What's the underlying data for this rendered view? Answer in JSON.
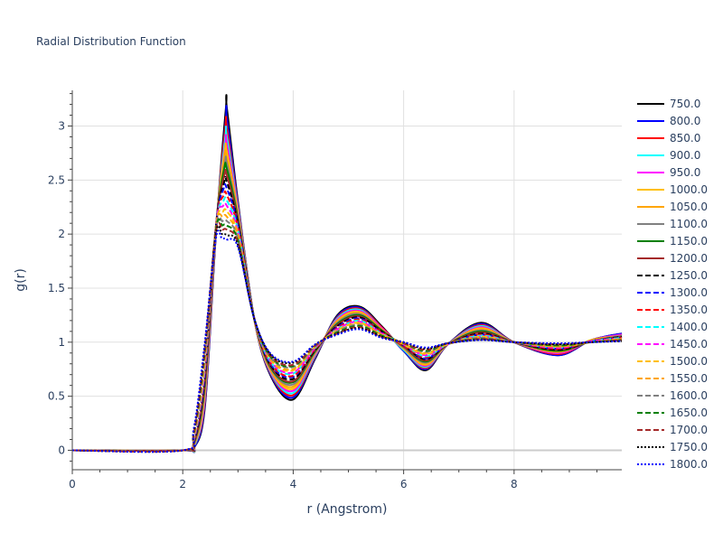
{
  "chart_data": {
    "type": "line",
    "title": "Radial Distribution Function",
    "xlabel": "r (Angstrom)",
    "ylabel": "g(r)",
    "xlim": [
      0,
      9.95
    ],
    "ylim": [
      -0.18,
      3.33
    ],
    "x_ticks": [
      0,
      2,
      4,
      6,
      8
    ],
    "x_tick_labels": [
      "0",
      "2",
      "4",
      "6",
      "8"
    ],
    "y_ticks": [
      0,
      0.5,
      1,
      1.5,
      2,
      2.5,
      3
    ],
    "y_tick_labels": [
      "0",
      "0.5",
      "1",
      "1.5",
      "2",
      "2.5",
      "3"
    ],
    "grid": true,
    "legend_position": "right",
    "r_samples": [
      0.0,
      2.0,
      2.2,
      2.4,
      2.6,
      2.8,
      3.0,
      3.3,
      3.6,
      4.0,
      4.4,
      4.8,
      5.2,
      5.6,
      6.0,
      6.4,
      6.8,
      7.4,
      8.0,
      8.8,
      9.4,
      9.95
    ],
    "series": [
      {
        "name": "750.0",
        "color": "#000000",
        "dash": "solid",
        "peak_r": 2.78,
        "peak_g": 3.16,
        "values": [
          0,
          0,
          0.02,
          0.4,
          2.0,
          3.16,
          2.3,
          1.2,
          0.68,
          0.47,
          0.85,
          1.25,
          1.33,
          1.15,
          0.92,
          0.74,
          0.98,
          1.18,
          1.0,
          0.88,
          1.02,
          1.08
        ]
      },
      {
        "name": "800.0",
        "color": "#0000ff",
        "dash": "solid",
        "peak_r": 2.78,
        "peak_g": 3.07,
        "values": [
          0,
          0,
          0.02,
          0.42,
          2.0,
          3.07,
          2.28,
          1.2,
          0.69,
          0.49,
          0.86,
          1.24,
          1.32,
          1.14,
          0.92,
          0.75,
          0.98,
          1.17,
          1.0,
          0.88,
          1.02,
          1.08
        ]
      },
      {
        "name": "850.0",
        "color": "#ff0000",
        "dash": "solid",
        "peak_r": 2.77,
        "peak_g": 2.98,
        "values": [
          0,
          0,
          0.03,
          0.45,
          2.02,
          2.98,
          2.26,
          1.2,
          0.7,
          0.51,
          0.87,
          1.23,
          1.31,
          1.14,
          0.93,
          0.76,
          0.98,
          1.16,
          1.0,
          0.89,
          1.02,
          1.07
        ]
      },
      {
        "name": "900.0",
        "color": "#00ffff",
        "dash": "solid",
        "peak_r": 2.77,
        "peak_g": 2.9,
        "values": [
          0,
          0,
          0.03,
          0.48,
          2.03,
          2.9,
          2.24,
          1.2,
          0.71,
          0.53,
          0.88,
          1.22,
          1.3,
          1.13,
          0.93,
          0.77,
          0.98,
          1.15,
          1.0,
          0.9,
          1.02,
          1.07
        ]
      },
      {
        "name": "950.0",
        "color": "#ff00ff",
        "dash": "solid",
        "peak_r": 2.77,
        "peak_g": 2.83,
        "values": [
          0,
          0,
          0.04,
          0.5,
          2.04,
          2.83,
          2.22,
          1.2,
          0.72,
          0.55,
          0.89,
          1.21,
          1.29,
          1.13,
          0.94,
          0.78,
          0.98,
          1.14,
          1.0,
          0.9,
          1.02,
          1.07
        ]
      },
      {
        "name": "1000.0",
        "color": "#ffbf00",
        "dash": "solid",
        "peak_r": 2.76,
        "peak_g": 2.76,
        "values": [
          0,
          0,
          0.04,
          0.53,
          2.05,
          2.76,
          2.2,
          1.2,
          0.73,
          0.57,
          0.9,
          1.2,
          1.28,
          1.12,
          0.94,
          0.79,
          0.98,
          1.13,
          1.0,
          0.91,
          1.02,
          1.06
        ]
      },
      {
        "name": "1050.0",
        "color": "#ffa500",
        "dash": "solid",
        "peak_r": 2.76,
        "peak_g": 2.7,
        "values": [
          0,
          0,
          0.05,
          0.56,
          2.06,
          2.7,
          2.18,
          1.2,
          0.74,
          0.59,
          0.91,
          1.19,
          1.27,
          1.12,
          0.95,
          0.8,
          0.98,
          1.12,
          1.0,
          0.91,
          1.02,
          1.06
        ]
      },
      {
        "name": "1100.0",
        "color": "#808080",
        "dash": "solid",
        "peak_r": 2.76,
        "peak_g": 2.65,
        "values": [
          0,
          0,
          0.05,
          0.58,
          2.06,
          2.65,
          2.16,
          1.21,
          0.75,
          0.61,
          0.91,
          1.18,
          1.26,
          1.11,
          0.95,
          0.81,
          0.98,
          1.11,
          1.0,
          0.92,
          1.01,
          1.06
        ]
      },
      {
        "name": "1150.0",
        "color": "#008000",
        "dash": "solid",
        "peak_r": 2.75,
        "peak_g": 2.6,
        "values": [
          0,
          0,
          0.06,
          0.61,
          2.07,
          2.6,
          2.14,
          1.21,
          0.76,
          0.63,
          0.92,
          1.17,
          1.25,
          1.11,
          0.96,
          0.82,
          0.98,
          1.1,
          1.0,
          0.92,
          1.01,
          1.05
        ]
      },
      {
        "name": "1200.0",
        "color": "#a52a2a",
        "dash": "solid",
        "peak_r": 2.75,
        "peak_g": 2.54,
        "values": [
          0,
          0,
          0.06,
          0.64,
          2.07,
          2.54,
          2.12,
          1.21,
          0.77,
          0.64,
          0.93,
          1.16,
          1.24,
          1.1,
          0.96,
          0.83,
          0.98,
          1.09,
          1.0,
          0.93,
          1.01,
          1.05
        ]
      },
      {
        "name": "1250.0",
        "color": "#000000",
        "dash": "dash",
        "peak_r": 2.75,
        "peak_g": 2.48,
        "values": [
          0,
          0,
          0.07,
          0.67,
          2.08,
          2.48,
          2.1,
          1.21,
          0.78,
          0.66,
          0.93,
          1.15,
          1.23,
          1.1,
          0.97,
          0.84,
          0.98,
          1.08,
          1.0,
          0.93,
          1.01,
          1.05
        ]
      },
      {
        "name": "1300.0",
        "color": "#0000ff",
        "dash": "dash",
        "peak_r": 2.74,
        "peak_g": 2.42,
        "values": [
          0,
          0,
          0.08,
          0.7,
          2.08,
          2.42,
          2.08,
          1.21,
          0.79,
          0.68,
          0.94,
          1.14,
          1.22,
          1.09,
          0.97,
          0.85,
          0.98,
          1.07,
          1.0,
          0.94,
          1.01,
          1.04
        ]
      },
      {
        "name": "1350.0",
        "color": "#ff0000",
        "dash": "dash",
        "peak_r": 2.74,
        "peak_g": 2.36,
        "values": [
          0,
          0,
          0.09,
          0.73,
          2.08,
          2.36,
          2.06,
          1.21,
          0.8,
          0.69,
          0.94,
          1.13,
          1.21,
          1.09,
          0.97,
          0.86,
          0.98,
          1.07,
          1.0,
          0.94,
          1.01,
          1.04
        ]
      },
      {
        "name": "1400.0",
        "color": "#00ffff",
        "dash": "dash",
        "peak_r": 2.74,
        "peak_g": 2.31,
        "values": [
          0,
          0,
          0.1,
          0.76,
          2.08,
          2.31,
          2.04,
          1.21,
          0.81,
          0.71,
          0.95,
          1.12,
          1.2,
          1.08,
          0.98,
          0.87,
          0.98,
          1.06,
          1.0,
          0.95,
          1.01,
          1.04
        ]
      },
      {
        "name": "1450.0",
        "color": "#ff00ff",
        "dash": "dash",
        "peak_r": 2.73,
        "peak_g": 2.26,
        "values": [
          0,
          0,
          0.11,
          0.79,
          2.08,
          2.26,
          2.02,
          1.21,
          0.82,
          0.72,
          0.95,
          1.12,
          1.19,
          1.08,
          0.98,
          0.88,
          0.98,
          1.05,
          1.0,
          0.95,
          1.01,
          1.03
        ]
      },
      {
        "name": "1500.0",
        "color": "#ffbf00",
        "dash": "dash",
        "peak_r": 2.73,
        "peak_g": 2.21,
        "values": [
          0,
          0,
          0.12,
          0.82,
          2.07,
          2.21,
          2.0,
          1.21,
          0.83,
          0.74,
          0.96,
          1.11,
          1.18,
          1.07,
          0.98,
          0.89,
          0.98,
          1.05,
          1.0,
          0.96,
          1.0,
          1.03
        ]
      },
      {
        "name": "1550.0",
        "color": "#ffa500",
        "dash": "dash",
        "peak_r": 2.73,
        "peak_g": 2.16,
        "values": [
          0,
          0,
          0.13,
          0.85,
          2.06,
          2.16,
          1.98,
          1.21,
          0.84,
          0.75,
          0.96,
          1.1,
          1.17,
          1.07,
          0.99,
          0.9,
          0.99,
          1.04,
          1.0,
          0.96,
          1.0,
          1.03
        ]
      },
      {
        "name": "1600.0",
        "color": "#808080",
        "dash": "dash",
        "peak_r": 2.72,
        "peak_g": 2.12,
        "values": [
          0,
          0,
          0.14,
          0.88,
          2.05,
          2.12,
          1.96,
          1.21,
          0.85,
          0.77,
          0.96,
          1.1,
          1.16,
          1.06,
          0.99,
          0.91,
          0.99,
          1.04,
          1.0,
          0.97,
          1.0,
          1.02
        ]
      },
      {
        "name": "1650.0",
        "color": "#008000",
        "dash": "dash",
        "peak_r": 2.72,
        "peak_g": 2.08,
        "values": [
          0,
          0,
          0.15,
          0.91,
          2.04,
          2.08,
          1.94,
          1.21,
          0.86,
          0.78,
          0.97,
          1.09,
          1.15,
          1.06,
          0.99,
          0.92,
          0.99,
          1.03,
          1.0,
          0.97,
          1.0,
          1.02
        ]
      },
      {
        "name": "1700.0",
        "color": "#a52a2a",
        "dash": "dash",
        "peak_r": 2.72,
        "peak_g": 2.04,
        "values": [
          0,
          0,
          0.16,
          0.94,
          2.02,
          2.04,
          1.92,
          1.21,
          0.87,
          0.79,
          0.97,
          1.08,
          1.14,
          1.05,
          0.99,
          0.93,
          0.99,
          1.03,
          1.0,
          0.98,
          1.0,
          1.02
        ]
      },
      {
        "name": "1750.0",
        "color": "#000000",
        "dash": "dot",
        "peak_r": 2.71,
        "peak_g": 2.0,
        "values": [
          0,
          0,
          0.18,
          0.97,
          2.0,
          1.99,
          1.9,
          1.21,
          0.88,
          0.81,
          0.98,
          1.08,
          1.13,
          1.05,
          1.0,
          0.94,
          0.99,
          1.02,
          1.0,
          0.98,
          1.0,
          1.01
        ]
      },
      {
        "name": "1800.0",
        "color": "#0000ff",
        "dash": "dot",
        "peak_r": 2.71,
        "peak_g": 1.96,
        "values": [
          0,
          0,
          0.2,
          1.0,
          1.96,
          1.95,
          1.88,
          1.21,
          0.89,
          0.82,
          0.98,
          1.07,
          1.12,
          1.04,
          1.0,
          0.95,
          0.99,
          1.02,
          1.0,
          0.99,
          1.0,
          1.01
        ]
      }
    ]
  }
}
